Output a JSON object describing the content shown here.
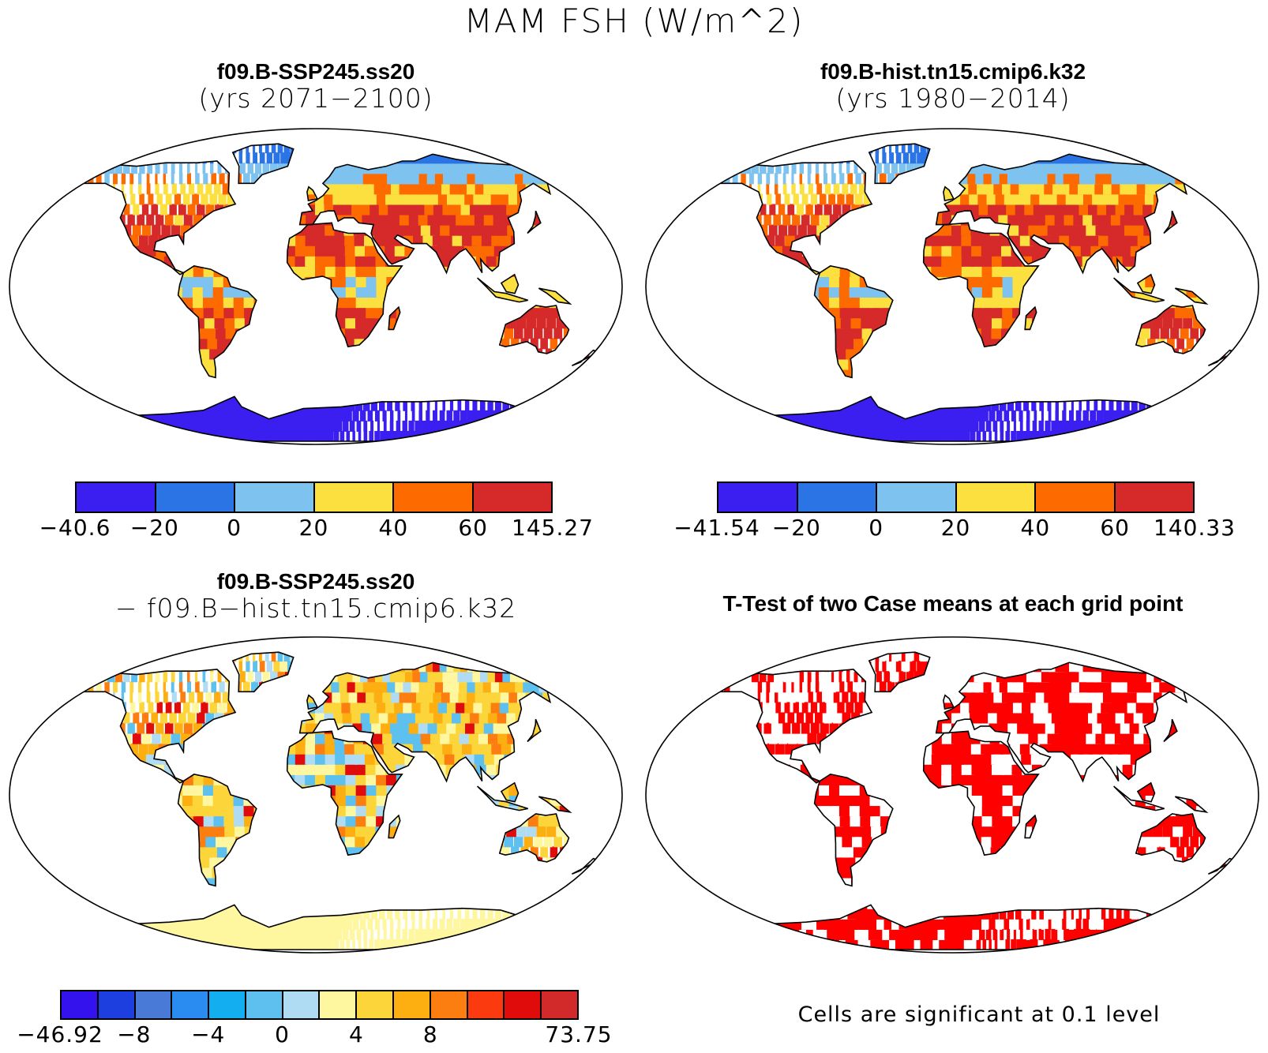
{
  "title": "MAM FSH (W/m^2)",
  "panels": [
    {
      "id": "case1",
      "title_line1": "f09.B-SSP245.ss20",
      "title_line2": "(yrs 2071−2100)",
      "colorbar": {
        "colors": [
          "#3b1ef0",
          "#2a74e6",
          "#7ec3ef",
          "#fce040",
          "#fd6a00",
          "#d62a2a"
        ],
        "tick_labels": [
          "−40.6",
          "−20",
          "0",
          "20",
          "40",
          "60",
          "145.27"
        ]
      }
    },
    {
      "id": "case2",
      "title_line1": "f09.B-hist.tn15.cmip6.k32",
      "title_line2": "(yrs 1980−2014)",
      "colorbar": {
        "colors": [
          "#3b1ef0",
          "#2a74e6",
          "#7ec3ef",
          "#fce040",
          "#fd6a00",
          "#d62a2a"
        ],
        "tick_labels": [
          "−41.54",
          "−20",
          "0",
          "20",
          "40",
          "60",
          "140.33"
        ]
      }
    },
    {
      "id": "diff",
      "title_line1": "f09.B-SSP245.ss20",
      "title_line2": "− f09.B−hist.tn15.cmip6.k32",
      "colorbar": {
        "colors": [
          "#3312ee",
          "#1e3fe0",
          "#4a7ad8",
          "#2a8cf0",
          "#13aef0",
          "#5dc0ee",
          "#b0dcf3",
          "#fff6a0",
          "#fcd53a",
          "#fdae10",
          "#fd7e10",
          "#fc3a10",
          "#e00b0b",
          "#d22a2a"
        ],
        "tick_labels": [
          "−46.92",
          "−8",
          "−4",
          "0",
          "4",
          "8",
          "73.75"
        ]
      }
    },
    {
      "id": "ttest",
      "title_line1": "T-Test of two Case means at each grid point",
      "footnote": "Cells are significant at 0.1 level",
      "sig_color": "#ff0000"
    }
  ]
}
